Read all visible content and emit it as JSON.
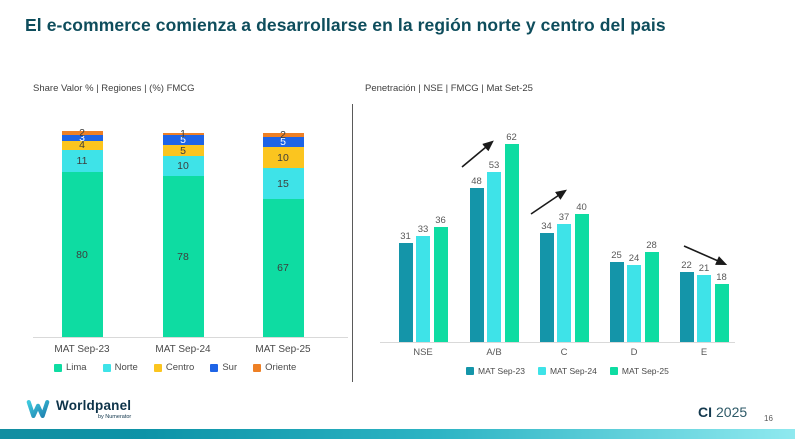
{
  "slide": {
    "title": "El e-commerce comienza a desarrollarse en la región norte y centro del pais",
    "page_number": "16"
  },
  "footer": {
    "brand_name": "Worldpanel",
    "brand_sub": "by Numerator",
    "event_code": "CI",
    "event_year": "2025"
  },
  "colors": {
    "title_teal": "#0e4d5c",
    "teal_dark": "#1495a9",
    "cyan": "#3ee3e8",
    "green": "#0edca2",
    "yellow": "#fbc51f",
    "blue": "#1e64e6",
    "orange": "#ee8025"
  },
  "chart_data": [
    {
      "type": "bar",
      "variant": "stacked",
      "title": "Share Valor % | Regiones |  (%) FMCG",
      "categories": [
        "MAT Sep-23",
        "MAT Sep-24",
        "MAT Sep-25"
      ],
      "series": [
        {
          "name": "Lima",
          "color": "#0edca2",
          "label_color": "#3d3d3d",
          "values": [
            80,
            78,
            67
          ]
        },
        {
          "name": "Norte",
          "color": "#3ee3e8",
          "label_color": "#3d3d3d",
          "values": [
            11,
            10,
            15
          ]
        },
        {
          "name": "Centro",
          "color": "#fbc51f",
          "label_color": "#3d3d3d",
          "values": [
            4,
            5,
            10
          ]
        },
        {
          "name": "Sur",
          "color": "#1e64e6",
          "label_color": "#ffffff",
          "values": [
            3,
            5,
            5
          ]
        },
        {
          "name": "Oriente",
          "color": "#ee8025",
          "label_color": "#3d3d3d",
          "values": [
            2,
            1,
            2
          ]
        }
      ],
      "ylim": [
        0,
        100
      ],
      "grid": false,
      "legend_position": "bottom"
    },
    {
      "type": "bar",
      "variant": "grouped",
      "title": "Penetración | NSE | FMCG | Mat Set-25",
      "categories": [
        "NSE",
        "A/B",
        "C",
        "D",
        "E"
      ],
      "series": [
        {
          "name": "MAT Sep-23",
          "color": "#1495a9",
          "values": [
            31,
            48,
            34,
            25,
            22
          ]
        },
        {
          "name": "MAT Sep-24",
          "color": "#3ee3e8",
          "values": [
            33,
            53,
            37,
            24,
            21
          ]
        },
        {
          "name": "MAT Sep-25",
          "color": "#0edca2",
          "values": [
            36,
            62,
            40,
            28,
            18
          ]
        }
      ],
      "ylim": [
        0,
        70
      ],
      "grid": false,
      "legend_position": "bottom",
      "annotations": [
        {
          "type": "arrow",
          "direction": "up",
          "category": "A/B"
        },
        {
          "type": "arrow",
          "direction": "up",
          "category": "C"
        },
        {
          "type": "arrow",
          "direction": "down",
          "category": "E"
        }
      ]
    }
  ]
}
